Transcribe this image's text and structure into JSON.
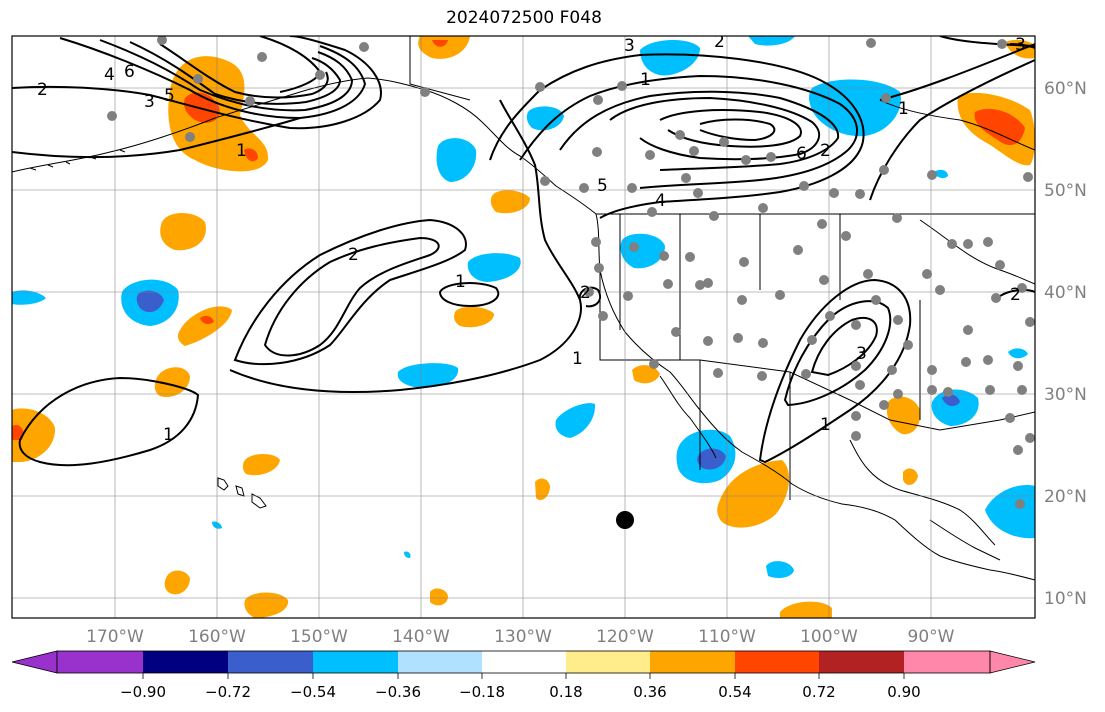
{
  "title": "2024072500 F048",
  "longitude_labels": [
    "170°W",
    "160°W",
    "150°W",
    "140°W",
    "130°W",
    "120°W",
    "110°W",
    "100°W",
    "90°W"
  ],
  "latitude_labels": [
    "60°N",
    "50°N",
    "40°N",
    "30°N",
    "20°N",
    "10°N"
  ],
  "colorbar": {
    "colors": [
      "#9932cc",
      "#000080",
      "#3a5fcd",
      "#00bfff",
      "#b0e2ff",
      "#ffffff",
      "#ffec8b",
      "#ffa500",
      "#ff4500",
      "#b22222",
      "#ff88aa"
    ],
    "tick_labels": [
      "−0.90",
      "−0.72",
      "−0.54",
      "−0.36",
      "−0.18",
      "0.18",
      "0.36",
      "0.54",
      "0.72",
      "0.90"
    ]
  },
  "contour_labels": [
    "2",
    "4",
    "6",
    "3",
    "5",
    "1",
    "2",
    "3",
    "1",
    "2",
    "5",
    "6",
    "4",
    "3",
    "2",
    "1",
    "1",
    "2",
    "1",
    "3",
    "1",
    "1",
    "2",
    "1"
  ],
  "marker": {
    "label": "storm-center"
  }
}
